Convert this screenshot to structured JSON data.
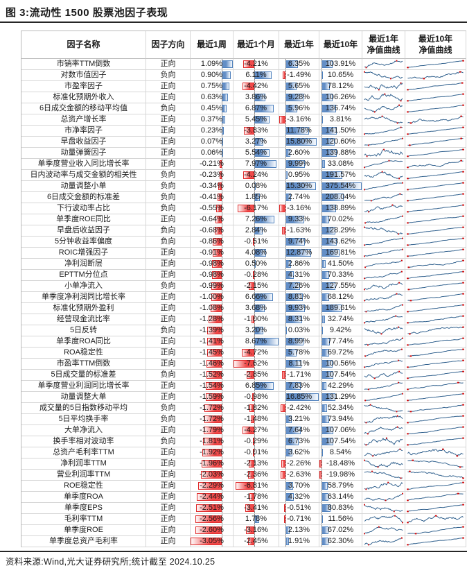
{
  "title": "图 3:流动性 1500 股票池因子表现",
  "footer": {
    "source": "资料来源:Wind,光大证券研究所;统计截至 2024.10.25"
  },
  "style": {
    "positive_bar_color": "#638ec6",
    "positive_bar_border": "#4f81bd",
    "negative_bar_color": "#f04a4a",
    "negative_bar_border": "#e02b2b",
    "axis_line_color": "#8a8a8a",
    "sparkline_color": "#31618e",
    "sparkline_marker_color": "#d40000"
  },
  "chart_data": {
    "type": "table",
    "title": "流动性 1500 股票池因子表现",
    "columns": [
      "因子名称",
      "因子方向",
      "最近1周",
      "最近1个月",
      "最近1年",
      "最近10年",
      "最近1年\n净值曲线",
      "最近10年\n净值曲线"
    ],
    "value_format": "percent",
    "bar_columns_note": "数值列含Excel式数据条:正值蓝色、负值红色,虚线为零轴",
    "rows": [
      [
        "市销率TTM倒数",
        "正向",
        "1.09%",
        "-4.21%",
        "6.35%",
        "103.91%"
      ],
      [
        "对数市值因子",
        "负向",
        "0.90%",
        "6.11%",
        "-1.49%",
        "10.65%"
      ],
      [
        "市盈率因子",
        "正向",
        "0.75%",
        "-4.42%",
        "5.65%",
        "78.12%"
      ],
      [
        "标准化预期外收入",
        "正向",
        "0.63%",
        "3.86%",
        "9.28%",
        "106.26%"
      ],
      [
        "6日成交金额的移动平均值",
        "负向",
        "0.45%",
        "6.87%",
        "5.96%",
        "136.74%"
      ],
      [
        "总资产增长率",
        "正向",
        "0.37%",
        "5.45%",
        "-3.16%",
        "3.81%"
      ],
      [
        "市净率因子",
        "正向",
        "0.23%",
        "-3.83%",
        "11.78%",
        "141.50%"
      ],
      [
        "早盘收益因子",
        "正向",
        "0.07%",
        "3.27%",
        "15.80%",
        "120.60%"
      ],
      [
        "动量弹簧因子",
        "正向",
        "0.06%",
        "5.54%",
        "2.60%",
        "139.88%"
      ],
      [
        "单季度营业收入同比增长率",
        "正向",
        "-0.21%",
        "7.97%",
        "9.99%",
        "33.08%"
      ],
      [
        "日内波动率与成交金额的相关性",
        "负向",
        "-0.23%",
        "-4.24%",
        "0.95%",
        "191.57%"
      ],
      [
        "动量调整小单",
        "负向",
        "-0.34%",
        "0.08%",
        "15.30%",
        "375.54%"
      ],
      [
        "6日成交金额的标准差",
        "负向",
        "-0.41%",
        "1.85%",
        "2.74%",
        "208.04%"
      ],
      [
        "下行波动率占比",
        "负向",
        "-0.55%",
        "-6.17%",
        "-3.16%",
        "138.89%"
      ],
      [
        "单季度ROE同比",
        "正向",
        "-0.64%",
        "7.26%",
        "9.33%",
        "70.02%"
      ],
      [
        "早盘后收益因子",
        "负向",
        "-0.68%",
        "2.84%",
        "-1.63%",
        "128.29%"
      ],
      [
        "5分钟收益率偏度",
        "负向",
        "-0.86%",
        "-0.51%",
        "9.74%",
        "143.62%"
      ],
      [
        "ROIC增强因子",
        "正向",
        "-0.91%",
        "4.08%",
        "12.87%",
        "169.81%"
      ],
      [
        "净利润断层",
        "正向",
        "-0.98%",
        "0.50%",
        "2.86%",
        "41.50%"
      ],
      [
        "EPTTM分位点",
        "正向",
        "-0.98%",
        "-0.28%",
        "4.31%",
        "70.33%"
      ],
      [
        "小单净流入",
        "负向",
        "-0.99%",
        "-2.15%",
        "7.26%",
        "127.55%"
      ],
      [
        "单季度净利润同比增长率",
        "正向",
        "-1.00%",
        "6.66%",
        "8.81%",
        "68.12%"
      ],
      [
        "标准化预期外盈利",
        "正向",
        "-1.08%",
        "3.68%",
        "9.93%",
        "189.61%"
      ],
      [
        "经营现金流比率",
        "正向",
        "-1.28%",
        "-1.00%",
        "8.31%",
        "32.74%"
      ],
      [
        "5日反转",
        "负向",
        "-1.39%",
        "3.20%",
        "0.03%",
        "9.42%"
      ],
      [
        "单季度ROA同比",
        "正向",
        "-1.41%",
        "8.67%",
        "8.99%",
        "77.74%"
      ],
      [
        "ROA稳定性",
        "正向",
        "-1.45%",
        "-4.72%",
        "5.78%",
        "69.72%"
      ],
      [
        "市盈率TTM倒数",
        "正向",
        "-1.46%",
        "-7.62%",
        "8.11%",
        "100.56%"
      ],
      [
        "5日成交量的标准差",
        "负向",
        "-1.52%",
        "-2.85%",
        "-1.71%",
        "107.54%"
      ],
      [
        "单季度营业利润同比增长率",
        "正向",
        "-1.54%",
        "6.85%",
        "7.83%",
        "42.29%"
      ],
      [
        "动量调整大单",
        "正向",
        "-1.59%",
        "-0.98%",
        "16.85%",
        "131.29%"
      ],
      [
        "成交量的5日指数移动平均",
        "负向",
        "-1.72%",
        "-1.82%",
        "-2.42%",
        "52.34%"
      ],
      [
        "5日平均换手率",
        "负向",
        "-1.72%",
        "-1.48%",
        "3.21%",
        "73.94%"
      ],
      [
        "大单净流入",
        "正向",
        "-1.79%",
        "-4.27%",
        "7.64%",
        "107.06%"
      ],
      [
        "换手率相对波动率",
        "负向",
        "-1.81%",
        "-0.29%",
        "6.73%",
        "107.54%"
      ],
      [
        "总资产毛利率TTM",
        "正向",
        "-1.92%",
        "-0.01%",
        "3.62%",
        "8.54%"
      ],
      [
        "净利润率TTM",
        "正向",
        "-1.96%",
        "-2.13%",
        "-2.26%",
        "-18.48%"
      ],
      [
        "营业利润率TTM",
        "正向",
        "-2.03%",
        "-2.36%",
        "-2.63%",
        "-19.98%"
      ],
      [
        "ROE稳定性",
        "正向",
        "-2.29%",
        "-6.81%",
        "3.70%",
        "58.79%"
      ],
      [
        "单季度ROA",
        "正向",
        "-2.44%",
        "-1.78%",
        "4.32%",
        "63.14%"
      ],
      [
        "单季度EPS",
        "正向",
        "-2.51%",
        "-3.41%",
        "-0.51%",
        "80.83%"
      ],
      [
        "毛利率TTM",
        "正向",
        "-2.56%",
        "1.78%",
        "-0.71%",
        "11.56%"
      ],
      [
        "单季度ROE",
        "正向",
        "-2.60%",
        "-3.16%",
        "2.13%",
        "67.02%"
      ],
      [
        "单季度总资产毛利率",
        "正向",
        "-3.05%",
        "-2.45%",
        "1.91%",
        "62.30%"
      ]
    ]
  }
}
